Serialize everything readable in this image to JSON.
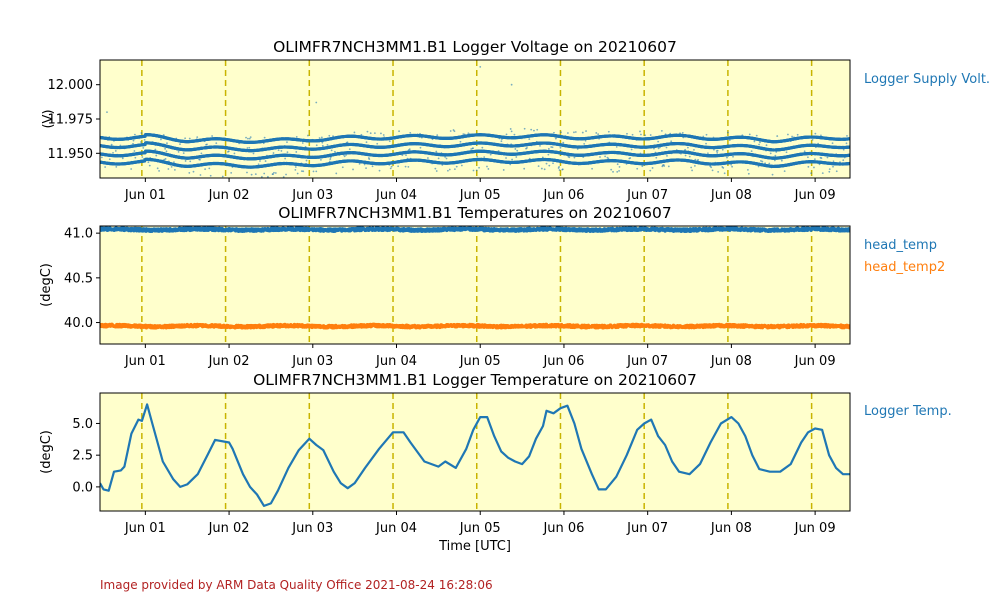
{
  "credit": "Image provided by ARM Data Quality Office 2021-08-24 16:28:06",
  "colors": {
    "background": "#ffffcc",
    "series_blue": "#1f77b4",
    "series_orange": "#ff7f0e",
    "day_line": "#c8b400",
    "credit_text": "#b22222"
  },
  "chart_data": [
    {
      "type": "scatter",
      "title": "OLIMFR7NCH3MM1.B1 Logger Voltage on 20210607",
      "xlabel": "",
      "ylabel": "(V)",
      "x_ticks": [
        "Jun 01",
        "Jun 02",
        "Jun 03",
        "Jun 04",
        "Jun 05",
        "Jun 06",
        "Jun 07",
        "Jun 08",
        "Jun 09"
      ],
      "xlim": [
        "2021-05-31 11:00",
        "2021-06-09 10:00"
      ],
      "ylim": [
        11.932,
        12.018
      ],
      "y_ticks": [
        "11.950",
        "11.975",
        "12.000"
      ],
      "day_markers": [
        "2021-05-31 23:00",
        "2021-06-01 23:00",
        "2021-06-02 23:00",
        "2021-06-03 23:00",
        "2021-06-04 23:00",
        "2021-06-05 23:00",
        "2021-06-06 23:00",
        "2021-06-07 23:00",
        "2021-06-08 23:00"
      ],
      "grid": false,
      "legend_position": "right",
      "series": [
        {
          "name": "Logger Supply Volt.",
          "color": "#1f77b4",
          "quantized_levels": [
            11.944,
            11.95,
            11.956,
            11.962
          ],
          "daily_typical": [
            {
              "x": "2021-06-01 00:00",
              "y": 11.953
            },
            {
              "x": "2021-06-01 12:00",
              "y": 11.948
            },
            {
              "x": "2021-06-02 12:00",
              "y": 11.947
            },
            {
              "x": "2021-06-03 12:00",
              "y": 11.951
            },
            {
              "x": "2021-06-04 12:00",
              "y": 11.952
            },
            {
              "x": "2021-06-05 12:00",
              "y": 11.953
            },
            {
              "x": "2021-06-06 12:00",
              "y": 11.951
            },
            {
              "x": "2021-06-07 12:00",
              "y": 11.952
            },
            {
              "x": "2021-06-08 12:00",
              "y": 11.948
            },
            {
              "x": "2021-06-09 06:00",
              "y": 11.951
            }
          ]
        }
      ]
    },
    {
      "type": "scatter",
      "title": "OLIMFR7NCH3MM1.B1 Temperatures on 20210607",
      "xlabel": "",
      "ylabel": "(degC)",
      "x_ticks": [
        "Jun 01",
        "Jun 02",
        "Jun 03",
        "Jun 04",
        "Jun 05",
        "Jun 06",
        "Jun 07",
        "Jun 08",
        "Jun 09"
      ],
      "xlim": [
        "2021-05-31 11:00",
        "2021-06-09 10:00"
      ],
      "ylim": [
        39.76,
        41.08
      ],
      "y_ticks": [
        "40.0",
        "40.5",
        "41.0"
      ],
      "grid": false,
      "legend_position": "right",
      "series": [
        {
          "name": "head_temp",
          "color": "#1f77b4",
          "typical_value": 41.04
        },
        {
          "name": "head_temp2",
          "color": "#ff7f0e",
          "typical_value": 39.96
        }
      ]
    },
    {
      "type": "line",
      "title": "OLIMFR7NCH3MM1.B1 Logger Temperature on 20210607",
      "xlabel": "Time [UTC]",
      "ylabel": "(degC)",
      "x_ticks": [
        "Jun 01",
        "Jun 02",
        "Jun 03",
        "Jun 04",
        "Jun 05",
        "Jun 06",
        "Jun 07",
        "Jun 08",
        "Jun 09"
      ],
      "xlim": [
        "2021-05-31 11:00",
        "2021-06-09 10:00"
      ],
      "ylim": [
        -1.9,
        7.4
      ],
      "y_ticks": [
        "0.0",
        "2.5",
        "5.0"
      ],
      "grid": false,
      "legend_position": "right",
      "series": [
        {
          "name": "Logger Temp.",
          "color": "#1f77b4",
          "points": [
            {
              "x": "2021-05-31 11:00",
              "y": 0.3
            },
            {
              "x": "2021-05-31 12:00",
              "y": -0.2
            },
            {
              "x": "2021-05-31 13:30",
              "y": -0.3
            },
            {
              "x": "2021-05-31 15:00",
              "y": 1.2
            },
            {
              "x": "2021-05-31 17:00",
              "y": 1.3
            },
            {
              "x": "2021-05-31 18:00",
              "y": 1.6
            },
            {
              "x": "2021-05-31 20:00",
              "y": 4.2
            },
            {
              "x": "2021-05-31 22:00",
              "y": 5.3
            },
            {
              "x": "2021-05-31 23:00",
              "y": 5.2
            },
            {
              "x": "2021-06-01 00:30",
              "y": 6.5
            },
            {
              "x": "2021-06-01 02:00",
              "y": 5.0
            },
            {
              "x": "2021-06-01 05:00",
              "y": 2.0
            },
            {
              "x": "2021-06-01 08:00",
              "y": 0.6
            },
            {
              "x": "2021-06-01 10:00",
              "y": 0.0
            },
            {
              "x": "2021-06-01 12:00",
              "y": 0.2
            },
            {
              "x": "2021-06-01 15:00",
              "y": 1.0
            },
            {
              "x": "2021-06-01 18:00",
              "y": 2.6
            },
            {
              "x": "2021-06-01 20:00",
              "y": 3.7
            },
            {
              "x": "2021-06-02 00:00",
              "y": 3.5
            },
            {
              "x": "2021-06-02 01:00",
              "y": 3.0
            },
            {
              "x": "2021-06-02 04:00",
              "y": 1.0
            },
            {
              "x": "2021-06-02 06:00",
              "y": 0.0
            },
            {
              "x": "2021-06-02 08:00",
              "y": -0.6
            },
            {
              "x": "2021-06-02 10:00",
              "y": -1.5
            },
            {
              "x": "2021-06-02 12:00",
              "y": -1.3
            },
            {
              "x": "2021-06-02 14:00",
              "y": -0.3
            },
            {
              "x": "2021-06-02 17:00",
              "y": 1.5
            },
            {
              "x": "2021-06-02 20:00",
              "y": 2.9
            },
            {
              "x": "2021-06-02 23:00",
              "y": 3.8
            },
            {
              "x": "2021-06-03 01:00",
              "y": 3.3
            },
            {
              "x": "2021-06-03 03:00",
              "y": 2.9
            },
            {
              "x": "2021-06-03 06:00",
              "y": 1.2
            },
            {
              "x": "2021-06-03 08:00",
              "y": 0.3
            },
            {
              "x": "2021-06-03 10:00",
              "y": -0.1
            },
            {
              "x": "2021-06-03 12:00",
              "y": 0.3
            },
            {
              "x": "2021-06-03 15:00",
              "y": 1.5
            },
            {
              "x": "2021-06-03 19:00",
              "y": 3.0
            },
            {
              "x": "2021-06-03 23:00",
              "y": 4.3
            },
            {
              "x": "2021-06-04 02:00",
              "y": 4.3
            },
            {
              "x": "2021-06-04 04:00",
              "y": 3.5
            },
            {
              "x": "2021-06-04 08:00",
              "y": 2.0
            },
            {
              "x": "2021-06-04 12:00",
              "y": 1.6
            },
            {
              "x": "2021-06-04 14:00",
              "y": 2.0
            },
            {
              "x": "2021-06-04 17:00",
              "y": 1.5
            },
            {
              "x": "2021-06-04 20:00",
              "y": 3.0
            },
            {
              "x": "2021-06-04 22:00",
              "y": 4.5
            },
            {
              "x": "2021-06-05 00:00",
              "y": 5.5
            },
            {
              "x": "2021-06-05 02:00",
              "y": 5.5
            },
            {
              "x": "2021-06-05 04:00",
              "y": 4.0
            },
            {
              "x": "2021-06-05 06:00",
              "y": 2.8
            },
            {
              "x": "2021-06-05 08:00",
              "y": 2.3
            },
            {
              "x": "2021-06-05 10:00",
              "y": 2.0
            },
            {
              "x": "2021-06-05 12:00",
              "y": 1.8
            },
            {
              "x": "2021-06-05 14:00",
              "y": 2.4
            },
            {
              "x": "2021-06-05 16:00",
              "y": 3.8
            },
            {
              "x": "2021-06-05 18:00",
              "y": 4.8
            },
            {
              "x": "2021-06-05 19:00",
              "y": 6.0
            },
            {
              "x": "2021-06-05 21:00",
              "y": 5.8
            },
            {
              "x": "2021-06-05 23:00",
              "y": 6.2
            },
            {
              "x": "2021-06-06 01:00",
              "y": 6.4
            },
            {
              "x": "2021-06-06 03:00",
              "y": 5.0
            },
            {
              "x": "2021-06-06 05:00",
              "y": 3.0
            },
            {
              "x": "2021-06-06 08:00",
              "y": 1.0
            },
            {
              "x": "2021-06-06 10:00",
              "y": -0.2
            },
            {
              "x": "2021-06-06 12:00",
              "y": -0.2
            },
            {
              "x": "2021-06-06 15:00",
              "y": 0.8
            },
            {
              "x": "2021-06-06 18:00",
              "y": 2.5
            },
            {
              "x": "2021-06-06 21:00",
              "y": 4.5
            },
            {
              "x": "2021-06-06 23:00",
              "y": 5.0
            },
            {
              "x": "2021-06-07 01:00",
              "y": 5.3
            },
            {
              "x": "2021-06-07 03:00",
              "y": 4.0
            },
            {
              "x": "2021-06-07 05:00",
              "y": 3.3
            },
            {
              "x": "2021-06-07 07:00",
              "y": 2.0
            },
            {
              "x": "2021-06-07 09:00",
              "y": 1.2
            },
            {
              "x": "2021-06-07 12:00",
              "y": 1.0
            },
            {
              "x": "2021-06-07 15:00",
              "y": 1.8
            },
            {
              "x": "2021-06-07 18:00",
              "y": 3.5
            },
            {
              "x": "2021-06-07 21:00",
              "y": 5.0
            },
            {
              "x": "2021-06-08 00:00",
              "y": 5.5
            },
            {
              "x": "2021-06-08 02:00",
              "y": 5.0
            },
            {
              "x": "2021-06-08 04:00",
              "y": 4.0
            },
            {
              "x": "2021-06-08 06:00",
              "y": 2.5
            },
            {
              "x": "2021-06-08 08:00",
              "y": 1.4
            },
            {
              "x": "2021-06-08 11:00",
              "y": 1.2
            },
            {
              "x": "2021-06-08 14:00",
              "y": 1.2
            },
            {
              "x": "2021-06-08 17:00",
              "y": 1.8
            },
            {
              "x": "2021-06-08 20:00",
              "y": 3.5
            },
            {
              "x": "2021-06-08 22:00",
              "y": 4.3
            },
            {
              "x": "2021-06-09 00:00",
              "y": 4.6
            },
            {
              "x": "2021-06-09 02:00",
              "y": 4.5
            },
            {
              "x": "2021-06-09 04:00",
              "y": 2.5
            },
            {
              "x": "2021-06-09 06:00",
              "y": 1.5
            },
            {
              "x": "2021-06-09 08:00",
              "y": 1.0
            },
            {
              "x": "2021-06-09 10:00",
              "y": 1.0
            }
          ]
        }
      ]
    }
  ]
}
